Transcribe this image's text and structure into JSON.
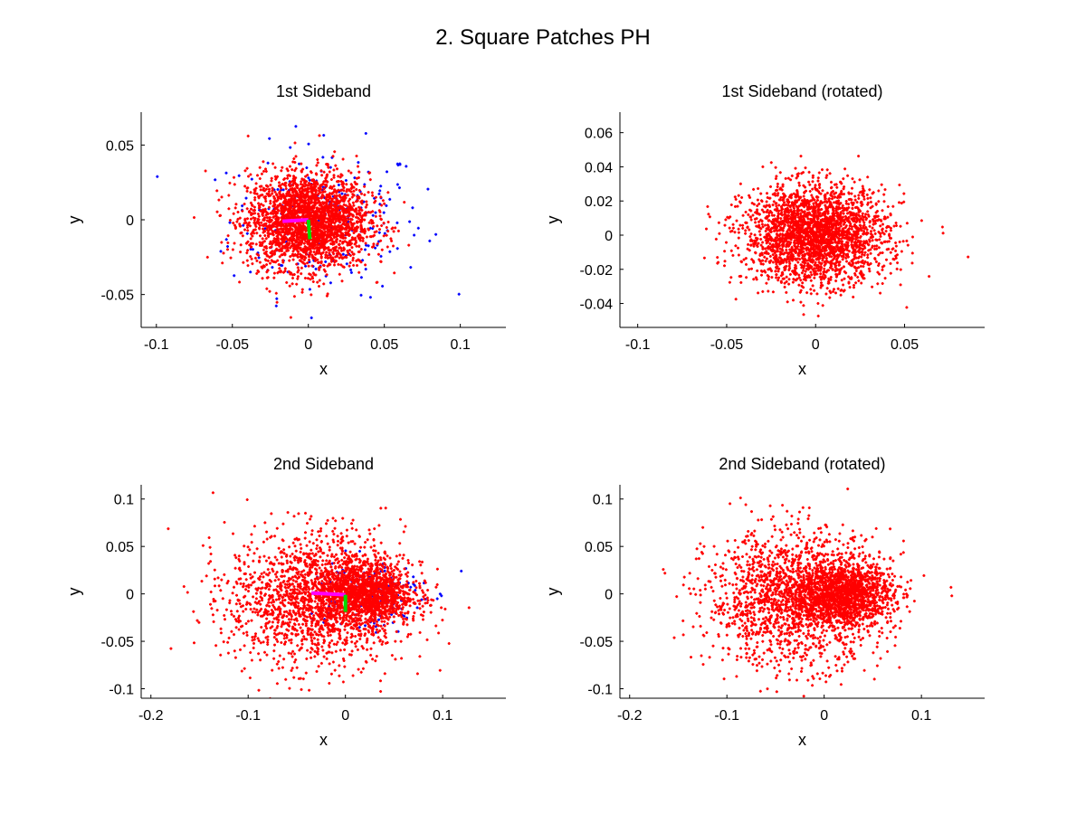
{
  "figure_title": "2. Square Patches PH",
  "colors": {
    "points_primary": "#ff0000",
    "points_secondary": "#0000ff",
    "axis_a": "#ff00ff",
    "axis_b": "#00dd00"
  },
  "chart_data": [
    {
      "type": "scatter",
      "title": "1st Sideband",
      "xlabel": "x",
      "ylabel": "y",
      "xlim": [
        -0.11,
        0.13
      ],
      "ylim": [
        -0.072,
        0.072
      ],
      "xticks": [
        -0.1,
        -0.05,
        0,
        0.05,
        0.1
      ],
      "xtick_labels": [
        "-0.1",
        "-0.05",
        "0",
        "0.05",
        "0.1"
      ],
      "yticks": [
        -0.05,
        0,
        0.05
      ],
      "ytick_labels": [
        "-0.05",
        "0",
        "0.05"
      ],
      "grid": false,
      "series": [
        {
          "color": "#0000ff",
          "distribution": {
            "n": 220,
            "cx": 0.012,
            "cy": 0.0,
            "sx": 0.032,
            "sy": 0.025
          }
        },
        {
          "color": "#ff0000",
          "distribution": {
            "n": 2600,
            "cx": 0.0,
            "cy": -0.001,
            "sx": 0.02,
            "sy": 0.016
          }
        }
      ],
      "axes_segments": [
        {
          "color": "#ff00ff",
          "x": [
            -0.017,
            0.0
          ],
          "y": [
            -0.001,
            0.0
          ]
        },
        {
          "color": "#00dd00",
          "x": [
            0.0,
            0.001
          ],
          "y": [
            0.0,
            -0.013
          ]
        }
      ]
    },
    {
      "type": "scatter",
      "title": "1st Sideband (rotated)",
      "xlabel": "x",
      "ylabel": "y",
      "xlim": [
        -0.11,
        0.095
      ],
      "ylim": [
        -0.054,
        0.072
      ],
      "xticks": [
        -0.1,
        -0.05,
        0,
        0.05
      ],
      "xtick_labels": [
        "-0.1",
        "-0.05",
        "0",
        "0.05"
      ],
      "yticks": [
        -0.04,
        -0.02,
        0,
        0.02,
        0.04,
        0.06
      ],
      "ytick_labels": [
        "-0.04",
        "-0.02",
        "0",
        "0.02",
        "0.04",
        "0.06"
      ],
      "grid": false,
      "series": [
        {
          "color": "#ff0000",
          "distribution": {
            "n": 2600,
            "cx": 0.0,
            "cy": 0.0,
            "sx": 0.02,
            "sy": 0.014
          }
        }
      ]
    },
    {
      "type": "scatter",
      "title": "2nd Sideband",
      "xlabel": "x",
      "ylabel": "y",
      "xlim": [
        -0.21,
        0.165
      ],
      "ylim": [
        -0.11,
        0.115
      ],
      "xticks": [
        -0.2,
        -0.1,
        0,
        0.1
      ],
      "xtick_labels": [
        "-0.2",
        "-0.1",
        "0",
        "0.1"
      ],
      "yticks": [
        -0.1,
        -0.05,
        0,
        0.05,
        0.1
      ],
      "ytick_labels": [
        "-0.1",
        "-0.05",
        "0",
        "0.05",
        "0.1"
      ],
      "grid": false,
      "series": [
        {
          "color": "#0000ff",
          "distribution": {
            "n": 160,
            "cx": 0.02,
            "cy": 0.0,
            "sx": 0.03,
            "sy": 0.02
          }
        },
        {
          "color": "#ff0000",
          "distribution": {
            "n": 1700,
            "cx": -0.03,
            "cy": -0.005,
            "sx": 0.045,
            "sy": 0.035
          }
        },
        {
          "color": "#ff0000",
          "distribution": {
            "n": 1300,
            "cx": 0.02,
            "cy": 0.0,
            "sx": 0.025,
            "sy": 0.016
          }
        }
      ],
      "axes_segments": [
        {
          "color": "#ff00ff",
          "x": [
            -0.035,
            0.0
          ],
          "y": [
            0.001,
            -0.001
          ]
        },
        {
          "color": "#00dd00",
          "x": [
            0.0,
            0.0
          ],
          "y": [
            -0.001,
            -0.019
          ]
        }
      ]
    },
    {
      "type": "scatter",
      "title": "2nd Sideband (rotated)",
      "xlabel": "x",
      "ylabel": "y",
      "xlim": [
        -0.21,
        0.165
      ],
      "ylim": [
        -0.11,
        0.115
      ],
      "xticks": [
        -0.2,
        -0.1,
        0,
        0.1
      ],
      "xtick_labels": [
        "-0.2",
        "-0.1",
        "0",
        "0.1"
      ],
      "yticks": [
        -0.1,
        -0.05,
        0,
        0.05,
        0.1
      ],
      "ytick_labels": [
        "-0.1",
        "-0.05",
        "0",
        "0.05",
        "0.1"
      ],
      "grid": false,
      "series": [
        {
          "color": "#ff0000",
          "distribution": {
            "n": 1700,
            "cx": -0.03,
            "cy": -0.005,
            "sx": 0.045,
            "sy": 0.035
          }
        },
        {
          "color": "#ff0000",
          "distribution": {
            "n": 1300,
            "cx": 0.02,
            "cy": 0.0,
            "sx": 0.025,
            "sy": 0.016
          }
        }
      ]
    }
  ]
}
